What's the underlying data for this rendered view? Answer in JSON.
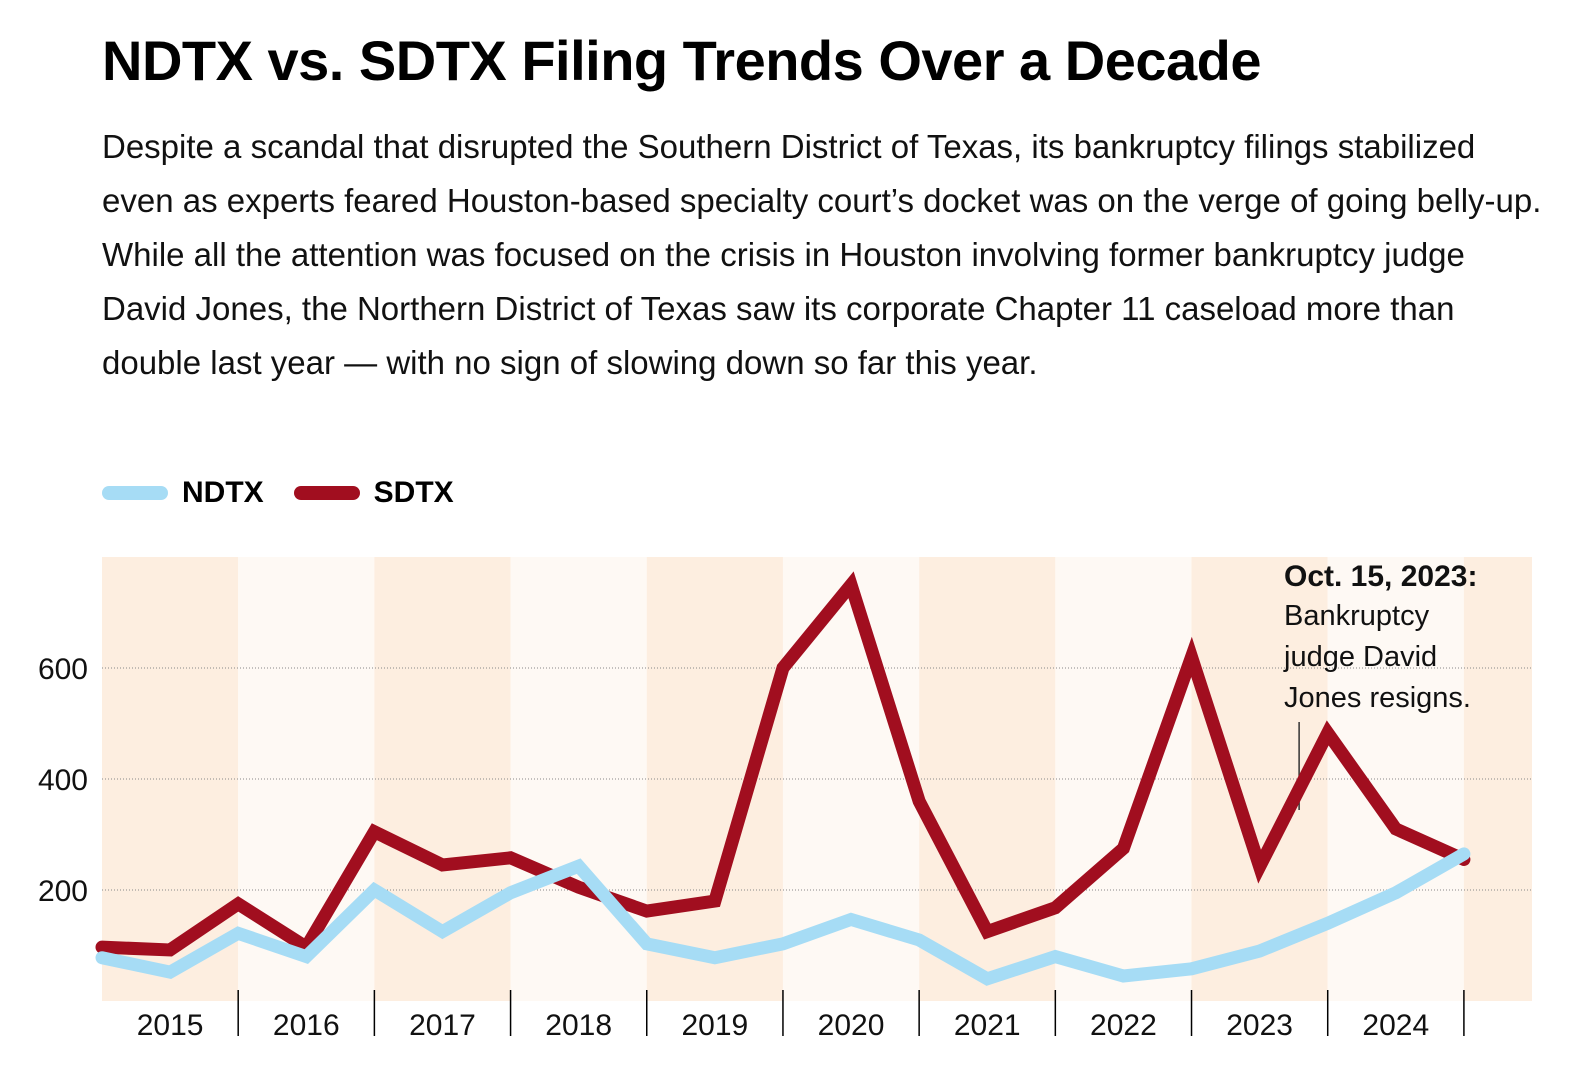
{
  "chart_data": {
    "type": "line",
    "title": "NDTX vs. SDTX Filing Trends Over a Decade",
    "subtitle": "Despite a scandal that disrupted the Southern District of Texas, its bankruptcy filings stabilized even as experts feared Houston-based specialty court’s docket was on the verge of going belly-up. While all the attention was focused on the crisis in Houston involving former bankruptcy judge David Jones, the Northern District of Texas saw its corporate Chapter 11 caseload more than double last year — with no sign of slowing down so far this year.",
    "x": [
      2015,
      2015.5,
      2016,
      2016.5,
      2017,
      2017.5,
      2018,
      2018.5,
      2019,
      2019.5,
      2020,
      2020.5,
      2021,
      2021.5,
      2022,
      2022.5,
      2023,
      2023.5,
      2024,
      2024.5,
      2025
    ],
    "series": [
      {
        "name": "NDTX",
        "color": "#a6dcf5",
        "values": [
          78,
          52,
          122,
          80,
          200,
          125,
          195,
          243,
          103,
          78,
          103,
          147,
          110,
          40,
          80,
          45,
          58,
          90,
          140,
          195,
          265
        ]
      },
      {
        "name": "SDTX",
        "color": "#a10e1f",
        "values": [
          97,
          92,
          175,
          97,
          305,
          245,
          258,
          205,
          162,
          180,
          600,
          750,
          360,
          125,
          168,
          275,
          620,
          242,
          483,
          310,
          255
        ]
      }
    ],
    "xlim": [
      2015,
      2025.5
    ],
    "xticks": [
      2015,
      2016,
      2017,
      2018,
      2019,
      2020,
      2021,
      2022,
      2023,
      2024
    ],
    "ylim": [
      0,
      800
    ],
    "yticks": [
      200,
      400,
      600
    ],
    "grid": true,
    "annotation": {
      "x": 2023.79,
      "title": "Oct. 15, 2023:",
      "text": "Bankruptcy judge David Jones resigns."
    }
  }
}
